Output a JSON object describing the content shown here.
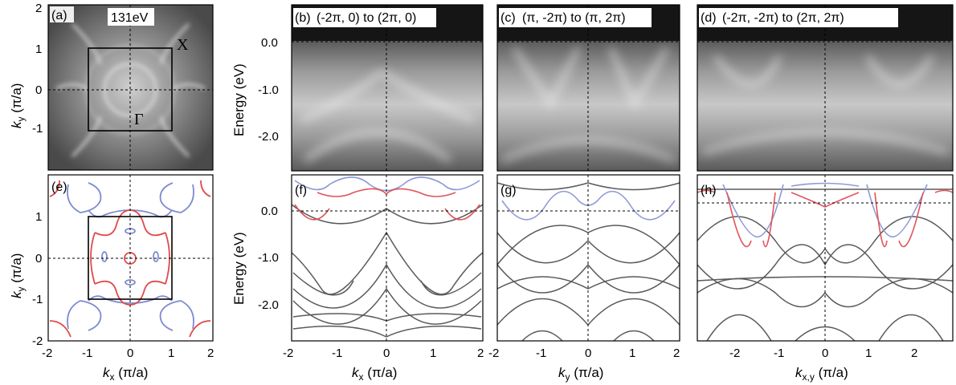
{
  "figure": {
    "panels": [
      {
        "id": "a",
        "tag": "(a)",
        "annotation": "131eV",
        "x_point": "X",
        "gamma_point": "Γ",
        "ylabel_italic": "k",
        "ylabel_sub": "y",
        "ylabel_rest": " (π/a)"
      },
      {
        "id": "b",
        "tag": "(b)",
        "cut": "(-2π, 0) to (2π, 0)"
      },
      {
        "id": "c",
        "tag": "(c)",
        "cut": "(π, -2π) to (π, 2π)"
      },
      {
        "id": "d",
        "tag": "(d)",
        "cut": "(-2π, -2π) to (2π, 2π)"
      },
      {
        "id": "e",
        "tag": "(e)",
        "ylabel_italic": "k",
        "ylabel_sub": "y",
        "ylabel_rest": " (π/a)",
        "xlabel_italic": "k",
        "xlabel_sub": "x",
        "xlabel_rest": " (π/a)"
      },
      {
        "id": "f",
        "tag": "(f)",
        "xlabel_italic": "k",
        "xlabel_sub": "x",
        "xlabel_rest": " (π/a)"
      },
      {
        "id": "g",
        "tag": "(g)",
        "xlabel_italic": "k",
        "xlabel_sub": "y",
        "xlabel_rest": " (π/a)"
      },
      {
        "id": "h",
        "tag": "(h)",
        "xlabel_italic": "k",
        "xlabel_sub": "x,y",
        "xlabel_rest": " (π/a)"
      }
    ],
    "energy_label": "Energy (eV)"
  },
  "chart_data": [
    {
      "panel": "a",
      "type": "heatmap",
      "xlim": [
        -2,
        2
      ],
      "ylim": [
        -2,
        2
      ],
      "yticks": [
        "-1",
        "0",
        "1",
        "2"
      ],
      "brillouin_zone": [
        -1,
        1
      ]
    },
    {
      "panel": "b",
      "type": "heatmap",
      "ylabel": "Energy (eV)",
      "yticks": [
        "0.0",
        "-1.0",
        "-2.0"
      ],
      "ytick_values": [
        0,
        -1,
        -2
      ],
      "ylim": [
        -2.9,
        0.6
      ]
    },
    {
      "panel": "c",
      "type": "heatmap",
      "ylim": [
        -2.9,
        0.6
      ]
    },
    {
      "panel": "d",
      "type": "heatmap",
      "ylim": [
        -2.9,
        0.6
      ]
    },
    {
      "panel": "e",
      "type": "line",
      "xlim": [
        -2,
        2
      ],
      "ylim": [
        -2,
        2
      ],
      "xticks": [
        "-2",
        "-1",
        "0",
        "1",
        "2"
      ],
      "yticks": [
        "-2",
        "-1",
        "0",
        "1"
      ],
      "series": [
        {
          "color": "#6f7fc8"
        },
        {
          "color": "#e04a4a"
        }
      ]
    },
    {
      "panel": "f",
      "type": "line",
      "xlim": [
        -2,
        2
      ],
      "ylim": [
        -2.9,
        0.6
      ],
      "xticks": [
        "-2",
        "-1",
        "0",
        "1",
        "2"
      ],
      "yticks": [
        "0.0",
        "-1.0",
        "-2.0"
      ],
      "ytick_values": [
        0,
        -1,
        -2
      ],
      "ylabel": "Energy (eV)"
    },
    {
      "panel": "g",
      "type": "line",
      "xlim": [
        -2,
        2
      ],
      "ylim": [
        -2.9,
        0.6
      ],
      "xticks": [
        "-2",
        "-1",
        "0",
        "1",
        "2"
      ]
    },
    {
      "panel": "h",
      "type": "line",
      "xlim": [
        -2.83,
        2.83
      ],
      "ylim": [
        -2.9,
        0.6
      ],
      "xticks": [
        "-2",
        "-1",
        "0",
        "1",
        "2"
      ],
      "xtick_values": [
        -2,
        -1,
        0,
        1,
        2
      ]
    }
  ],
  "colors": {
    "blue_band": "#8f9ad6",
    "red_band": "#e0555a",
    "grey_band": "#5a5a5a"
  }
}
